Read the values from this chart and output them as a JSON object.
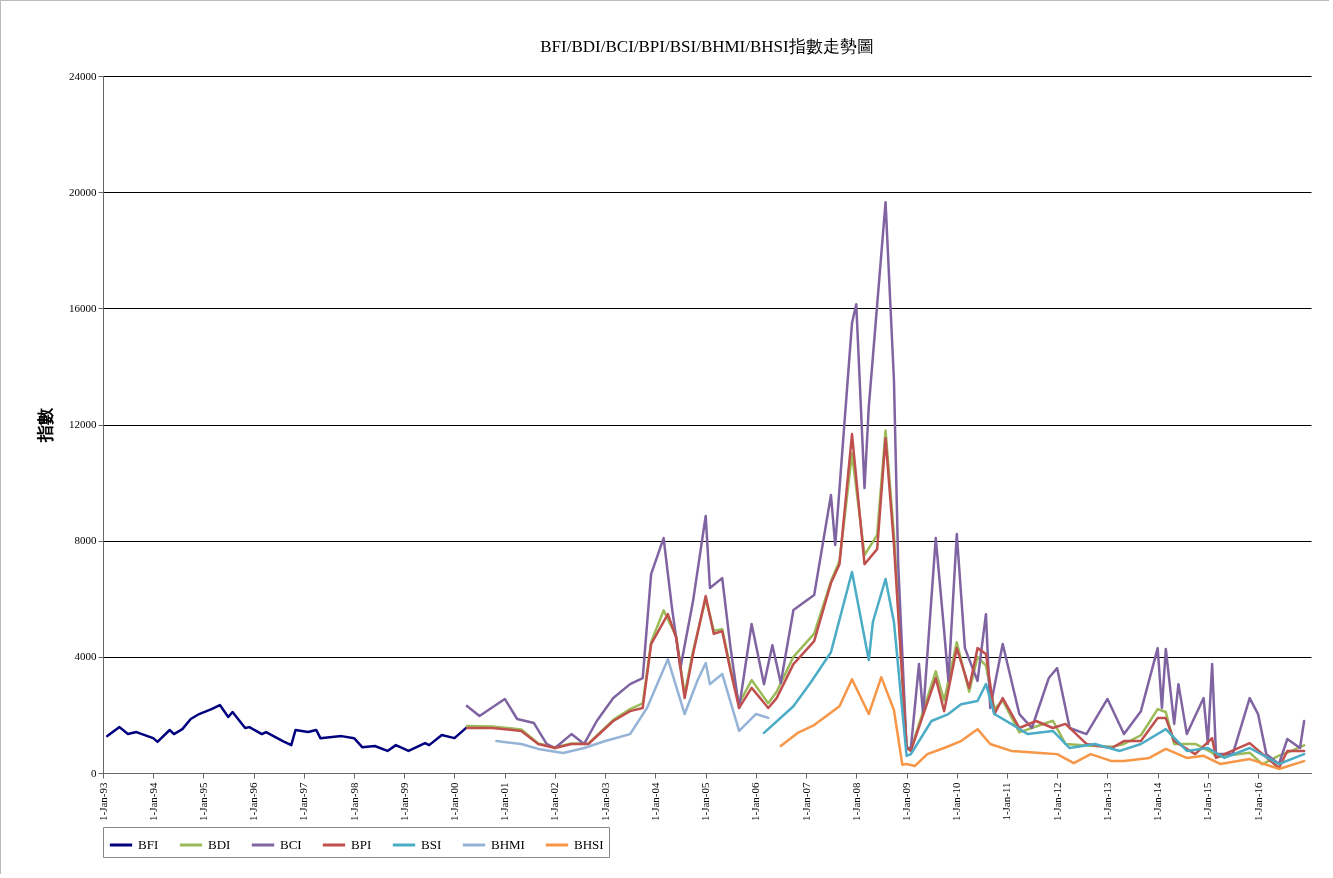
{
  "chart_data": {
    "type": "line",
    "title": "BFI/BDI/BCI/BPI/BSI/BHMI/BHSI指數走勢圖",
    "ylabel": "指數",
    "xlim": [
      "1993-01-01",
      "2017-01-20"
    ],
    "ylim": [
      0,
      24000
    ],
    "yticks": [
      0,
      4000,
      8000,
      12000,
      16000,
      20000,
      24000
    ],
    "xticks": [
      {
        "value": "1993-01-01",
        "label": "1-Jan-93"
      },
      {
        "value": "1994-01-01",
        "label": "1-Jan-94"
      },
      {
        "value": "1995-01-01",
        "label": "1-Jan-95"
      },
      {
        "value": "1996-01-01",
        "label": "1-Jan-96"
      },
      {
        "value": "1997-01-01",
        "label": "1-Jan-97"
      },
      {
        "value": "1998-01-01",
        "label": "1-Jan-98"
      },
      {
        "value": "1999-01-01",
        "label": "1-Jan-99"
      },
      {
        "value": "2000-01-01",
        "label": "1-Jan-00"
      },
      {
        "value": "2001-01-01",
        "label": "1-Jan-01"
      },
      {
        "value": "2002-01-01",
        "label": "1-Jan-02"
      },
      {
        "value": "2003-01-01",
        "label": "1-Jan-03"
      },
      {
        "value": "2004-01-01",
        "label": "1-Jan-04"
      },
      {
        "value": "2005-01-01",
        "label": "1-Jan-05"
      },
      {
        "value": "2006-01-01",
        "label": "1-Jan-06"
      },
      {
        "value": "2007-01-01",
        "label": "1-Jan-07"
      },
      {
        "value": "2008-01-01",
        "label": "1-Jan-08"
      },
      {
        "value": "2009-01-01",
        "label": "1-Jan-09"
      },
      {
        "value": "2010-01-01",
        "label": "1-Jan-10"
      },
      {
        "value": "2011-01-01",
        "label": "1-Jan-11"
      },
      {
        "value": "2012-01-01",
        "label": "1-Jan-12"
      },
      {
        "value": "2013-01-01",
        "label": "1-Jan-13"
      },
      {
        "value": "2014-01-01",
        "label": "1-Jan-14"
      },
      {
        "value": "2015-01-01",
        "label": "1-Jan-15"
      },
      {
        "value": "2016-01-01",
        "label": "1-Jan-16"
      }
    ],
    "grid": "y",
    "legend": "bottom",
    "series": [
      {
        "name": "BFI",
        "color": "#00007f",
        "x": [
          "1993-02",
          "1993-05",
          "1993-07",
          "1993-09",
          "1994-01",
          "1994-02",
          "1994-05",
          "1994-06",
          "1994-08",
          "1994-10",
          "1994-12",
          "1995-03",
          "1995-05",
          "1995-07",
          "1995-08",
          "1995-11",
          "1995-12",
          "1996-03",
          "1996-04",
          "1996-08",
          "1996-10",
          "1996-11",
          "1997-02",
          "1997-04",
          "1997-05",
          "1997-10",
          "1998-01",
          "1998-03",
          "1998-06",
          "1998-09",
          "1998-11",
          "1999-02",
          "1999-06",
          "1999-07",
          "1999-10",
          "2000-01",
          "2000-04"
        ],
        "values": [
          1270,
          1580,
          1340,
          1410,
          1200,
          1070,
          1480,
          1340,
          1510,
          1860,
          2030,
          2200,
          2340,
          1930,
          2100,
          1550,
          1580,
          1340,
          1410,
          1100,
          960,
          1480,
          1410,
          1480,
          1200,
          1270,
          1200,
          890,
          930,
          760,
          960,
          760,
          1030,
          960,
          1310,
          1200,
          1580
        ]
      },
      {
        "name": "BDI",
        "color": "#9bbb59",
        "x": [
          "2000-04",
          "2000-10",
          "2001-05",
          "2001-09",
          "2002-01",
          "2002-05",
          "2002-09",
          "2003-03",
          "2003-07",
          "2003-10",
          "2003-12",
          "2004-03",
          "2004-06",
          "2004-08",
          "2004-10",
          "2005-01",
          "2005-03",
          "2005-05",
          "2005-07",
          "2005-09",
          "2005-12",
          "2006-04",
          "2006-06",
          "2006-10",
          "2007-03",
          "2007-07",
          "2007-09",
          "2007-12",
          "2008-03",
          "2008-06",
          "2008-08",
          "2008-10",
          "2009-01",
          "2009-02",
          "2009-08",
          "2009-10",
          "2010-01",
          "2010-04",
          "2010-06",
          "2010-08",
          "2010-10",
          "2010-12",
          "2011-04",
          "2011-08",
          "2011-12",
          "2012-03",
          "2012-08",
          "2013-02",
          "2013-05",
          "2013-09",
          "2014-01",
          "2014-03",
          "2014-05",
          "2014-10",
          "2015-02",
          "2015-03",
          "2015-11",
          "2016-02",
          "2016-06",
          "2016-08",
          "2016-12"
        ],
        "values": [
          1620,
          1600,
          1500,
          1020,
          880,
          1020,
          1010,
          1830,
          2200,
          2400,
          4500,
          5600,
          4700,
          2700,
          4200,
          6000,
          4900,
          4950,
          3600,
          2400,
          3200,
          2400,
          2800,
          4000,
          4800,
          6600,
          7300,
          11000,
          7500,
          8200,
          11790,
          8200,
          900,
          800,
          3500,
          2500,
          4500,
          2800,
          4000,
          3700,
          2200,
          2500,
          1400,
          1600,
          1800,
          1000,
          950,
          900,
          1000,
          1300,
          2200,
          2100,
          1000,
          1000,
          700,
          550,
          700,
          300,
          600,
          700,
          950
        ]
      },
      {
        "name": "BCI",
        "color": "#8064a2",
        "x": [
          "2000-04",
          "2000-07",
          "2001-01",
          "2001-04",
          "2001-08",
          "2001-11",
          "2002-01",
          "2002-05",
          "2002-08",
          "2002-11",
          "2003-03",
          "2003-07",
          "2003-10",
          "2003-12",
          "2004-03",
          "2004-05",
          "2004-07",
          "2004-10",
          "2005-01",
          "2005-02",
          "2005-05",
          "2005-07",
          "2005-09",
          "2005-12",
          "2006-03",
          "2006-05",
          "2006-07",
          "2006-10",
          "2007-03",
          "2007-07",
          "2007-08",
          "2007-12",
          "2008-01",
          "2008-03",
          "2008-04",
          "2008-08",
          "2008-10",
          "2008-11",
          "2009-01",
          "2009-02",
          "2009-04",
          "2009-05",
          "2009-08",
          "2009-10",
          "2009-11",
          "2010-01",
          "2010-03",
          "2010-06",
          "2010-08",
          "2010-09",
          "2010-12",
          "2011-04",
          "2011-07",
          "2011-11",
          "2012-01",
          "2012-04",
          "2012-08",
          "2013-01",
          "2013-05",
          "2013-09",
          "2014-01",
          "2014-02",
          "2014-03",
          "2014-05",
          "2014-06",
          "2014-08",
          "2014-12",
          "2015-01",
          "2015-02",
          "2015-03",
          "2015-07",
          "2015-11",
          "2016-01",
          "2016-03",
          "2016-06",
          "2016-08",
          "2016-11",
          "2016-12"
        ],
        "values": [
          2310,
          1960,
          2550,
          1860,
          1720,
          1000,
          860,
          1340,
          1000,
          1790,
          2580,
          3060,
          3270,
          6850,
          8090,
          5680,
          3610,
          5920,
          8850,
          6370,
          6710,
          4300,
          2240,
          5130,
          3060,
          4400,
          3100,
          5610,
          6130,
          9570,
          7850,
          15490,
          16140,
          9810,
          12600,
          19650,
          13530,
          7190,
          860,
          860,
          3750,
          2030,
          8090,
          4890,
          3170,
          8230,
          4300,
          3170,
          5470,
          2240,
          4440,
          2030,
          1550,
          3270,
          3610,
          1550,
          1340,
          2550,
          1340,
          2130,
          4300,
          2240,
          4270,
          1690,
          3060,
          1340,
          2580,
          1000,
          3750,
          650,
          650,
          2580,
          2030,
          650,
          310,
          1170,
          860,
          1790
        ]
      },
      {
        "name": "BPI",
        "color": "#c0504d",
        "x": [
          "2000-04",
          "2000-10",
          "2001-05",
          "2001-09",
          "2002-01",
          "2002-05",
          "2002-09",
          "2003-03",
          "2003-07",
          "2003-10",
          "2003-12",
          "2004-04",
          "2004-06",
          "2004-08",
          "2004-10",
          "2005-01",
          "2005-03",
          "2005-05",
          "2005-07",
          "2005-09",
          "2005-12",
          "2006-04",
          "2006-06",
          "2006-10",
          "2007-03",
          "2007-07",
          "2007-09",
          "2007-12",
          "2008-03",
          "2008-06",
          "2008-08",
          "2008-10",
          "2009-01",
          "2009-02",
          "2009-08",
          "2009-10",
          "2010-01",
          "2010-04",
          "2010-06",
          "2010-08",
          "2010-10",
          "2010-12",
          "2011-04",
          "2011-08",
          "2011-12",
          "2012-03",
          "2012-08",
          "2013-02",
          "2013-05",
          "2013-09",
          "2014-01",
          "2014-03",
          "2014-05",
          "2014-10",
          "2015-02",
          "2015-03",
          "2015-11",
          "2016-06",
          "2016-08",
          "2016-12"
        ],
        "values": [
          1550,
          1550,
          1450,
          1000,
          860,
          1000,
          1000,
          1790,
          2130,
          2240,
          4440,
          5470,
          4650,
          2580,
          4100,
          6090,
          4790,
          4890,
          3510,
          2240,
          2930,
          2240,
          2580,
          3750,
          4540,
          6540,
          7190,
          11670,
          7190,
          7710,
          11530,
          7850,
          860,
          760,
          3270,
          2130,
          4300,
          2930,
          4300,
          4100,
          2030,
          2580,
          1550,
          1790,
          1550,
          1690,
          1000,
          860,
          1100,
          1100,
          1890,
          1890,
          1100,
          650,
          1200,
          520,
          1030,
          170,
          760,
          760
        ]
      },
      {
        "name": "BSI",
        "color": "#4bacc6",
        "x": [
          "2006-03",
          "2006-10",
          "2007-02",
          "2007-07",
          "2007-12",
          "2008-04",
          "2008-05",
          "2008-08",
          "2008-10",
          "2009-01",
          "2009-02",
          "2009-07",
          "2009-11",
          "2010-02",
          "2010-06",
          "2010-08",
          "2010-10",
          "2011-02",
          "2011-06",
          "2011-12",
          "2012-04",
          "2012-10",
          "2013-04",
          "2013-09",
          "2014-03",
          "2014-08",
          "2015-01",
          "2015-05",
          "2015-11",
          "2016-06",
          "2016-12"
        ],
        "values": [
          1380,
          2300,
          3100,
          4160,
          6920,
          3890,
          5200,
          6680,
          5200,
          590,
          650,
          1790,
          2030,
          2370,
          2480,
          3060,
          2030,
          1690,
          1340,
          1450,
          860,
          1000,
          760,
          1000,
          1510,
          760,
          860,
          520,
          860,
          310,
          650
        ]
      },
      {
        "name": "BHMI",
        "color": "#95b3d7",
        "x": [
          "2000-11",
          "2001-05",
          "2001-09",
          "2002-03",
          "2002-08",
          "2003-01",
          "2003-07",
          "2003-11",
          "2004-04",
          "2004-08",
          "2004-11",
          "2005-01",
          "2005-02",
          "2005-05",
          "2005-09",
          "2006-01",
          "2006-04"
        ],
        "values": [
          1100,
          1000,
          830,
          690,
          860,
          1100,
          1340,
          2240,
          3920,
          2030,
          3170,
          3790,
          3060,
          3410,
          1450,
          2030,
          1900
        ]
      },
      {
        "name": "BHSI",
        "color": "#f79646",
        "x": [
          "2006-07",
          "2006-11",
          "2007-03",
          "2007-09",
          "2007-12",
          "2008-04",
          "2008-07",
          "2008-10",
          "2008-12",
          "2009-01",
          "2009-03",
          "2009-06",
          "2009-10",
          "2010-02",
          "2010-06",
          "2010-09",
          "2011-02",
          "2011-09",
          "2012-01",
          "2012-05",
          "2012-09",
          "2013-02",
          "2013-05",
          "2013-11",
          "2014-03",
          "2014-08",
          "2014-12",
          "2015-04",
          "2015-11",
          "2016-06",
          "2016-12"
        ],
        "values": [
          930,
          1380,
          1650,
          2300,
          3230,
          2030,
          3300,
          2170,
          280,
          310,
          240,
          650,
          860,
          1100,
          1510,
          1000,
          760,
          690,
          650,
          340,
          650,
          410,
          410,
          520,
          830,
          520,
          590,
          310,
          480,
          140,
          410
        ]
      }
    ]
  }
}
